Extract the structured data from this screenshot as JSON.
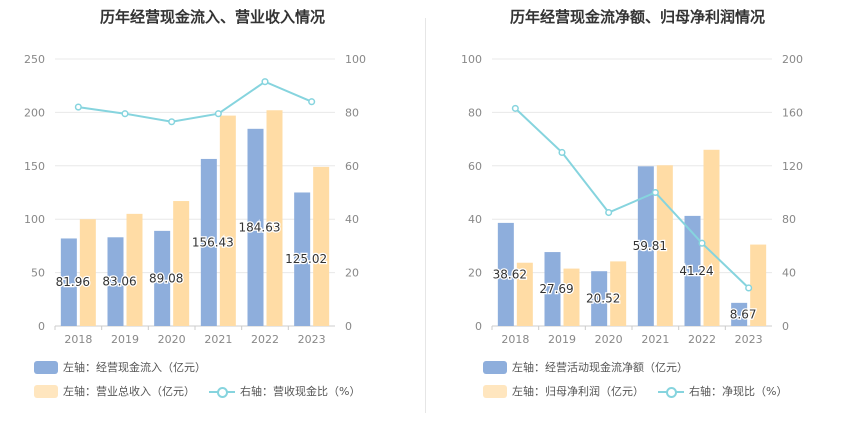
{
  "colors": {
    "bar1": "#8eaedc",
    "bar2": "#ffdca5",
    "line": "#86d4de",
    "grid": "#e8e8e8",
    "axis_text": "#888888"
  },
  "chart_data": [
    {
      "type": "bar",
      "title": "历年经营现金流入、营业收入情况",
      "categories": [
        "2018",
        "2019",
        "2020",
        "2021",
        "2022",
        "2023"
      ],
      "left_axis": {
        "min": 0,
        "max": 250,
        "ticks": [
          0,
          50,
          100,
          150,
          200,
          250
        ]
      },
      "right_axis": {
        "min": 0,
        "max": 100,
        "ticks": [
          0,
          20,
          40,
          60,
          80,
          100
        ]
      },
      "series": [
        {
          "name": "左轴：经营现金流入（亿元）",
          "type": "bar",
          "axis": "left",
          "values": [
            81.96,
            83.06,
            89.08,
            156.43,
            184.63,
            125.02
          ],
          "labels": [
            "81.96",
            "83.06",
            "89.08",
            "156.43",
            "184.63",
            "125.02"
          ]
        },
        {
          "name": "左轴：营业总收入（亿元）",
          "type": "bar",
          "axis": "left",
          "values": [
            100,
            105,
            117,
            197,
            202,
            149
          ]
        },
        {
          "name": "右轴：营收现金比（%）",
          "type": "line",
          "axis": "right",
          "values": [
            82,
            79.5,
            76.5,
            79.5,
            91.5,
            84
          ]
        }
      ]
    },
    {
      "type": "bar",
      "title": "历年经营现金流净额、归母净利润情况",
      "categories": [
        "2018",
        "2019",
        "2020",
        "2021",
        "2022",
        "2023"
      ],
      "left_axis": {
        "min": 0,
        "max": 100,
        "ticks": [
          0,
          20,
          40,
          60,
          80,
          100
        ]
      },
      "right_axis": {
        "min": 0,
        "max": 200,
        "ticks": [
          0,
          40,
          80,
          120,
          160,
          200
        ]
      },
      "series": [
        {
          "name": "左轴：经营活动现金流净额（亿元）",
          "type": "bar",
          "axis": "left",
          "values": [
            38.62,
            27.69,
            20.52,
            59.81,
            41.24,
            8.67
          ],
          "labels": [
            "38.62",
            "27.69",
            "20.52",
            "59.81",
            "41.24",
            "8.67"
          ]
        },
        {
          "name": "左轴：归母净利润（亿元）",
          "type": "bar",
          "axis": "left",
          "values": [
            23.7,
            21.5,
            24.2,
            60.2,
            66,
            30.5
          ]
        },
        {
          "name": "右轴：净现比（%）",
          "type": "line",
          "axis": "right",
          "values": [
            163,
            130,
            85,
            100,
            62,
            28.5
          ]
        }
      ]
    }
  ]
}
